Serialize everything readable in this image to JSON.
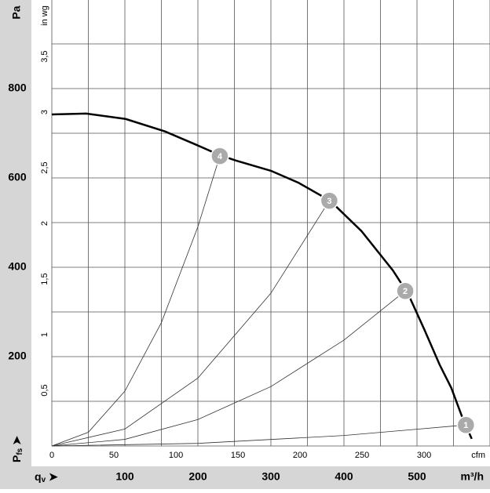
{
  "chart_data": {
    "type": "line",
    "x_label": {
      "main": "q",
      "sub": "v"
    },
    "x_unit": "m³/h",
    "y_label": {
      "main": "P",
      "sub": "fs"
    },
    "y_unit": "Pa",
    "x2_unit": "cfm",
    "y2_unit": "in wg",
    "xlim": [
      0,
      600
    ],
    "ylim": [
      0,
      1000
    ],
    "xticks": [
      100,
      200,
      300,
      400,
      500
    ],
    "yticks": [
      200,
      400,
      600,
      800
    ],
    "x2lim": [
      0,
      353.1
    ],
    "x2ticks": [
      0,
      50,
      100,
      150,
      200,
      250,
      300
    ],
    "y2lim": [
      0,
      4.015
    ],
    "y2ticks": [
      {
        "value": 0.5,
        "label": "0,5"
      },
      1,
      {
        "value": 1.5,
        "label": "1,5"
      },
      2,
      {
        "value": 2.5,
        "label": "2,5"
      },
      3,
      {
        "value": 3.5,
        "label": "3,5"
      }
    ],
    "xgrid": [
      0,
      50,
      100,
      150,
      200,
      250,
      300,
      350,
      400,
      450,
      500,
      550,
      600
    ],
    "ygrid": [
      0,
      100,
      200,
      300,
      400,
      500,
      600,
      700,
      800,
      900,
      1000
    ],
    "grid": true,
    "series": [
      {
        "role": "fan",
        "color": "#000000",
        "x": [
          0,
          47,
          101,
          155,
          198,
          230,
          252,
          300,
          338,
          381,
          424,
          467,
          488,
          510,
          531,
          547,
          563,
          575
        ],
        "values": [
          742,
          744,
          732,
          704,
          674,
          651,
          639,
          616,
          589,
          549,
          481,
          393,
          340,
          261,
          182,
          130,
          60,
          16
        ]
      },
      {
        "role": "system",
        "color": "#333333",
        "x": [
          0,
          50,
          100,
          150,
          200,
          230
        ],
        "values": [
          0,
          30.7,
          122.7,
          276,
          490.7,
          649
        ]
      },
      {
        "role": "system",
        "color": "#333333",
        "x": [
          0,
          100,
          200,
          300,
          380
        ],
        "values": [
          0,
          38,
          152,
          342,
          549
        ]
      },
      {
        "role": "system",
        "color": "#333333",
        "x": [
          0,
          100,
          200,
          300,
          400,
          484
        ],
        "values": [
          0,
          14.8,
          59.2,
          133,
          237,
          347
        ]
      },
      {
        "role": "system",
        "color": "#333333",
        "x": [
          0,
          200,
          400,
          567
        ],
        "values": [
          0,
          5.8,
          23.4,
          47
        ]
      }
    ],
    "operating_points": [
      {
        "label": "1",
        "x": 567,
        "y": 47
      },
      {
        "label": "2",
        "x": 484,
        "y": 347
      },
      {
        "label": "3",
        "x": 380,
        "y": 549
      },
      {
        "label": "4",
        "x": 230,
        "y": 649
      }
    ]
  }
}
